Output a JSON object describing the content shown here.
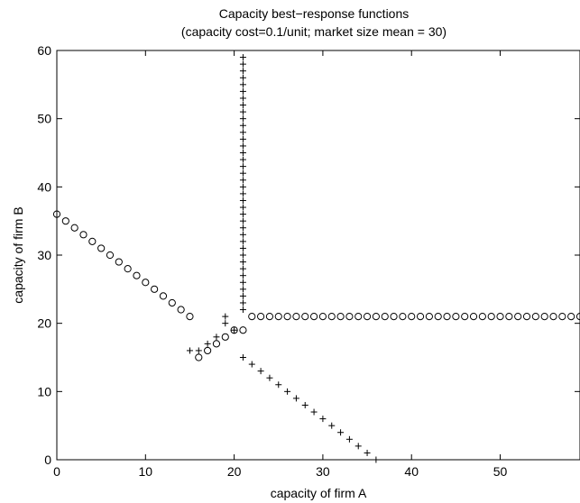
{
  "chart_data": {
    "type": "scatter",
    "title": "Capacity best−response functions",
    "subtitle": "(capacity cost=0.1/unit; market size mean = 30)",
    "xlabel": "capacity of firm A",
    "ylabel": "capacity of firm B",
    "xlim": [
      0,
      59
    ],
    "ylim": [
      0,
      60
    ],
    "xticks": [
      0,
      10,
      20,
      30,
      40,
      50
    ],
    "yticks": [
      0,
      10,
      20,
      30,
      40,
      50,
      60
    ],
    "grid": false,
    "legend": "none",
    "series": [
      {
        "marker": "circle",
        "x": [
          0,
          1,
          2,
          3,
          4,
          5,
          6,
          7,
          8,
          9,
          10,
          11,
          12,
          13,
          14,
          15,
          16,
          17,
          18,
          19,
          20,
          21,
          22,
          23,
          24,
          25,
          26,
          27,
          28,
          29,
          30,
          31,
          32,
          33,
          34,
          35,
          36,
          37,
          38,
          39,
          40,
          41,
          42,
          43,
          44,
          45,
          46,
          47,
          48,
          49,
          50,
          51,
          52,
          53,
          54,
          55,
          56,
          57,
          58,
          59
        ],
        "y": [
          36,
          35,
          34,
          33,
          32,
          31,
          30,
          29,
          28,
          27,
          26,
          25,
          24,
          23,
          22,
          21,
          15,
          16,
          17,
          18,
          19,
          19,
          21,
          21,
          21,
          21,
          21,
          21,
          21,
          21,
          21,
          21,
          21,
          21,
          21,
          21,
          21,
          21,
          21,
          21,
          21,
          21,
          21,
          21,
          21,
          21,
          21,
          21,
          21,
          21,
          21,
          21,
          21,
          21,
          21,
          21,
          21,
          21,
          21,
          21
        ]
      },
      {
        "marker": "plus",
        "x": [
          21,
          21,
          21,
          21,
          21,
          21,
          21,
          21,
          21,
          21,
          21,
          21,
          21,
          21,
          21,
          21,
          21,
          21,
          21,
          21,
          21,
          21,
          21,
          21,
          21,
          21,
          21,
          21,
          21,
          21,
          21,
          21,
          21,
          21,
          21,
          21,
          21,
          21,
          20,
          19,
          19,
          18,
          17,
          16,
          15,
          21,
          22,
          23,
          24,
          25,
          26,
          27,
          28,
          29,
          30,
          31,
          32,
          33,
          34,
          35,
          36
        ],
        "y": [
          22,
          23,
          24,
          25,
          26,
          27,
          28,
          29,
          30,
          31,
          32,
          33,
          34,
          35,
          36,
          37,
          38,
          39,
          40,
          41,
          42,
          43,
          44,
          45,
          46,
          47,
          48,
          49,
          50,
          51,
          52,
          53,
          54,
          55,
          56,
          57,
          58,
          59,
          19,
          20,
          21,
          18,
          17,
          16,
          16,
          15,
          14,
          13,
          12,
          11,
          10,
          9,
          8,
          7,
          6,
          5,
          4,
          3,
          2,
          1,
          0
        ]
      }
    ]
  }
}
